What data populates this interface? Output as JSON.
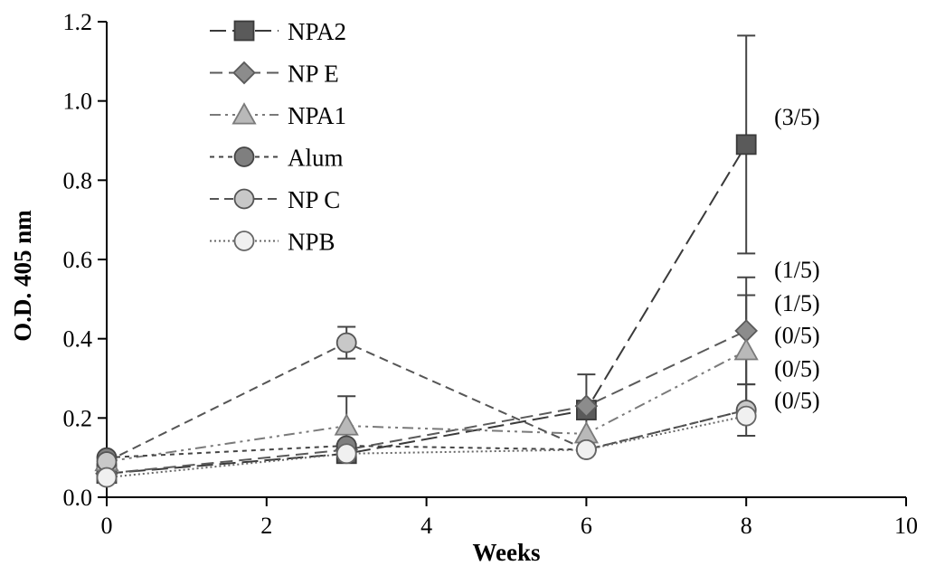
{
  "chart_data": {
    "type": "line",
    "title": "",
    "xlabel": "Weeks",
    "ylabel": "O.D. 405 nm",
    "xlim": [
      0,
      10
    ],
    "ylim": [
      0,
      1.2
    ],
    "x_ticks": [
      0,
      2,
      4,
      6,
      8,
      10
    ],
    "x_tick_labels": [
      "0",
      "2",
      "4",
      "6",
      "8",
      "10"
    ],
    "y_ticks": [
      0,
      0.2,
      0.4,
      0.6,
      0.8,
      1.0,
      1.2
    ],
    "y_tick_labels": [
      "0.0",
      "0.2",
      "0.4",
      "0.6",
      "0.8",
      "1.0",
      "1.2"
    ],
    "grid": false,
    "legend_position": "top-left",
    "x": [
      0,
      3,
      6,
      8
    ],
    "series": [
      {
        "name": "NPA2",
        "label": "NPA2",
        "marker": "square",
        "fill": "#5a5a5a",
        "stroke": "#3a3a3a",
        "dash": "18 7",
        "values": [
          0.06,
          0.11,
          0.22,
          0.89
        ],
        "errors": [
          null,
          null,
          0.09,
          0.275
        ]
      },
      {
        "name": "NPE",
        "label": "NP E",
        "marker": "diamond",
        "fill": "#8c8c8c",
        "stroke": "#5a5a5a",
        "dash": "14 7",
        "values": [
          0.06,
          0.12,
          0.23,
          0.42
        ],
        "errors": [
          null,
          null,
          null,
          0.135
        ]
      },
      {
        "name": "NPA1",
        "label": "NPA1",
        "marker": "triangle",
        "fill": "#b9b9b9",
        "stroke": "#7a7a7a",
        "dash": "12 5 3 5 3 5",
        "values": [
          0.09,
          0.18,
          0.16,
          0.37
        ],
        "errors": [
          null,
          0.075,
          null,
          0.14
        ]
      },
      {
        "name": "Alum",
        "label": "Alum",
        "marker": "circle",
        "fill": "#7f7f7f",
        "stroke": "#444444",
        "dash": "5 5",
        "values": [
          0.1,
          0.13,
          0.12,
          0.22
        ],
        "errors": [
          null,
          null,
          null,
          0.065
        ]
      },
      {
        "name": "NPC",
        "label": "NP C",
        "marker": "circle",
        "fill": "#c8c8c8",
        "stroke": "#555555",
        "dash": "10 6",
        "values": [
          0.09,
          0.39,
          0.12,
          0.22
        ],
        "errors": [
          null,
          0.04,
          null,
          null
        ]
      },
      {
        "name": "NPB",
        "label": "NPB",
        "marker": "circle",
        "fill": "#f0f0f0",
        "stroke": "#666666",
        "dash": "2 3",
        "values": [
          0.05,
          0.11,
          0.12,
          0.205
        ],
        "errors": [
          null,
          null,
          null,
          null
        ]
      }
    ],
    "annotations": [
      {
        "text": "(3/5)",
        "x": 8.35,
        "y": 0.96
      },
      {
        "text": "(1/5)",
        "x": 8.35,
        "y": 0.575
      },
      {
        "text": "(1/5)",
        "x": 8.35,
        "y": 0.49
      },
      {
        "text": "(0/5)",
        "x": 8.35,
        "y": 0.41
      },
      {
        "text": "(0/5)",
        "x": 8.35,
        "y": 0.325
      },
      {
        "text": "(0/5)",
        "x": 8.35,
        "y": 0.245
      }
    ]
  }
}
